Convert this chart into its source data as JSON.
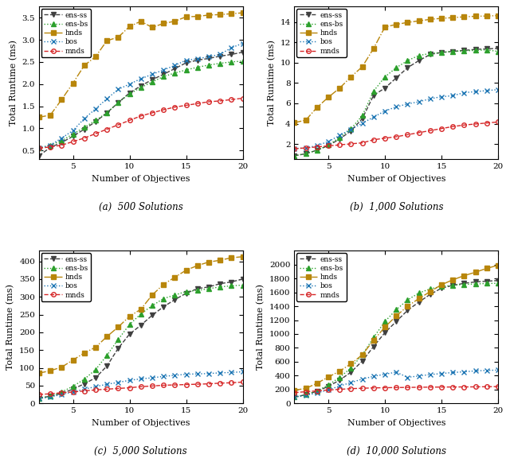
{
  "x": [
    2,
    3,
    4,
    5,
    6,
    7,
    8,
    9,
    10,
    11,
    12,
    13,
    14,
    15,
    16,
    17,
    18,
    19,
    20
  ],
  "subplots": [
    {
      "title": "(a)  500 Solutions",
      "ylabel": "Total Runtime (ms)",
      "xlabel": "Number of Objectives",
      "ylim": [
        0.3,
        3.75
      ],
      "yticks": [
        0.5,
        1.0,
        1.5,
        2.0,
        2.5,
        3.0,
        3.5
      ],
      "series": {
        "ens-ss": [
          0.38,
          0.57,
          0.68,
          0.82,
          0.98,
          1.15,
          1.35,
          1.58,
          1.8,
          1.96,
          2.1,
          2.22,
          2.35,
          2.48,
          2.54,
          2.58,
          2.63,
          2.67,
          2.72
        ],
        "ens-bs": [
          0.55,
          0.62,
          0.72,
          0.87,
          1.02,
          1.18,
          1.35,
          1.58,
          1.78,
          1.92,
          2.05,
          2.17,
          2.25,
          2.32,
          2.38,
          2.43,
          2.47,
          2.5,
          2.52
        ],
        "hnds": [
          1.25,
          1.3,
          1.65,
          2.02,
          2.42,
          2.62,
          2.98,
          3.06,
          3.3,
          3.42,
          3.28,
          3.37,
          3.42,
          3.52,
          3.53,
          3.56,
          3.57,
          3.59,
          3.61
        ],
        "bos": [
          0.55,
          0.62,
          0.78,
          0.95,
          1.22,
          1.44,
          1.67,
          1.88,
          2.0,
          2.12,
          2.22,
          2.32,
          2.42,
          2.54,
          2.57,
          2.62,
          2.67,
          2.82,
          2.92
        ],
        "mnds": [
          0.55,
          0.58,
          0.62,
          0.7,
          0.78,
          0.88,
          0.98,
          1.08,
          1.18,
          1.28,
          1.35,
          1.42,
          1.48,
          1.52,
          1.56,
          1.6,
          1.62,
          1.65,
          1.68
        ]
      }
    },
    {
      "title": "(b)  1,000 Solutions",
      "ylabel": "Total Runtime (ms)",
      "xlabel": "Number of Objectives",
      "ylim": [
        0.5,
        15.5
      ],
      "yticks": [
        2,
        4,
        6,
        8,
        10,
        12,
        14
      ],
      "series": {
        "ens-ss": [
          0.85,
          1.05,
          1.4,
          1.85,
          2.5,
          3.3,
          4.5,
          6.8,
          7.5,
          8.5,
          9.5,
          10.2,
          10.8,
          11.0,
          11.1,
          11.2,
          11.3,
          11.35,
          11.4
        ],
        "ens-bs": [
          0.85,
          1.05,
          1.4,
          1.9,
          2.65,
          3.5,
          4.8,
          7.2,
          8.6,
          9.5,
          10.2,
          10.7,
          10.9,
          11.0,
          11.1,
          11.15,
          11.2,
          11.25,
          11.1
        ],
        "hnds": [
          4.1,
          4.35,
          5.6,
          6.6,
          7.5,
          8.6,
          9.6,
          11.4,
          13.5,
          13.75,
          13.95,
          14.1,
          14.25,
          14.35,
          14.42,
          14.5,
          14.55,
          14.58,
          14.62
        ],
        "bos": [
          1.55,
          1.62,
          1.85,
          2.25,
          2.85,
          3.45,
          4.05,
          4.65,
          5.25,
          5.65,
          5.95,
          6.15,
          6.45,
          6.65,
          6.75,
          7.05,
          7.15,
          7.25,
          7.35
        ],
        "mnds": [
          1.55,
          1.62,
          1.72,
          1.82,
          1.92,
          2.02,
          2.12,
          2.42,
          2.58,
          2.72,
          2.92,
          3.12,
          3.32,
          3.52,
          3.72,
          3.87,
          3.97,
          4.07,
          4.17
        ]
      }
    },
    {
      "title": "(c)  5,000 Solutions",
      "ylabel": "Total Runtime (ms)",
      "xlabel": "Number of Objectives",
      "ylim": [
        0,
        430
      ],
      "yticks": [
        0,
        50,
        100,
        150,
        200,
        250,
        300,
        350,
        400
      ],
      "series": {
        "ens-ss": [
          15,
          20,
          28,
          40,
          55,
          72,
          105,
          155,
          195,
          220,
          248,
          272,
          292,
          310,
          323,
          328,
          337,
          342,
          350
        ],
        "ens-bs": [
          15,
          20,
          32,
          48,
          68,
          95,
          135,
          180,
          222,
          252,
          275,
          295,
          305,
          315,
          318,
          323,
          328,
          331,
          333
        ],
        "hnds": [
          85,
          92,
          102,
          122,
          142,
          158,
          188,
          215,
          245,
          265,
          305,
          335,
          355,
          375,
          388,
          398,
          403,
          410,
          413
        ],
        "bos": [
          13,
          18,
          25,
          32,
          40,
          47,
          54,
          59,
          65,
          69,
          72,
          76,
          79,
          82,
          83,
          84,
          86,
          87,
          89
        ],
        "mnds": [
          25,
          27,
          30,
          32,
          35,
          38,
          40,
          42,
          44,
          47,
          49,
          51,
          52,
          53,
          54,
          55,
          57,
          58,
          60
        ]
      }
    },
    {
      "title": "(d)  10,000 Solutions",
      "ylabel": "Total Runtime (ms)",
      "xlabel": "Number of Objectives",
      "ylim": [
        0,
        2200
      ],
      "yticks": [
        0,
        200,
        400,
        600,
        800,
        1000,
        1200,
        1400,
        1600,
        1800,
        2000
      ],
      "series": {
        "ens-ss": [
          90,
          125,
          175,
          245,
          335,
          450,
          610,
          820,
          1020,
          1180,
          1340,
          1460,
          1570,
          1660,
          1700,
          1730,
          1750,
          1760,
          1770
        ],
        "ens-bs": [
          90,
          125,
          180,
          265,
          375,
          510,
          700,
          950,
          1180,
          1350,
          1490,
          1590,
          1650,
          1685,
          1700,
          1715,
          1720,
          1728,
          1730
        ],
        "hnds": [
          190,
          215,
          290,
          380,
          465,
          570,
          700,
          910,
          1100,
          1260,
          1400,
          1510,
          1610,
          1710,
          1780,
          1840,
          1890,
          1945,
          1990
        ],
        "bos": [
          90,
          115,
          150,
          195,
          250,
          300,
          350,
          390,
          420,
          450,
          375,
          395,
          415,
          430,
          445,
          455,
          468,
          475,
          480
        ],
        "mnds": [
          155,
          168,
          180,
          192,
          202,
          212,
          218,
          223,
          226,
          228,
          230,
          232,
          234,
          235,
          236,
          237,
          238,
          240,
          242
        ]
      }
    }
  ],
  "series_styles": {
    "ens-ss": {
      "color": "#404040",
      "marker": "v",
      "linestyle": "--",
      "markersize": 4,
      "fillstyle": "full"
    },
    "ens-bs": {
      "color": "#2ca02c",
      "marker": "^",
      "linestyle": ":",
      "markersize": 4,
      "fillstyle": "full"
    },
    "hnds": {
      "color": "#b8860b",
      "marker": "s",
      "linestyle": "-.",
      "markersize": 4,
      "fillstyle": "full"
    },
    "bos": {
      "color": "#1f77b4",
      "marker": "x",
      "linestyle": ":",
      "markersize": 5,
      "fillstyle": "none"
    },
    "mnds": {
      "color": "#d62728",
      "marker": "o",
      "linestyle": "--",
      "markersize": 4,
      "fillstyle": "none"
    }
  },
  "legend_labels": [
    "ens-ss",
    "ens-bs",
    "hnds",
    "bos",
    "mnds"
  ]
}
